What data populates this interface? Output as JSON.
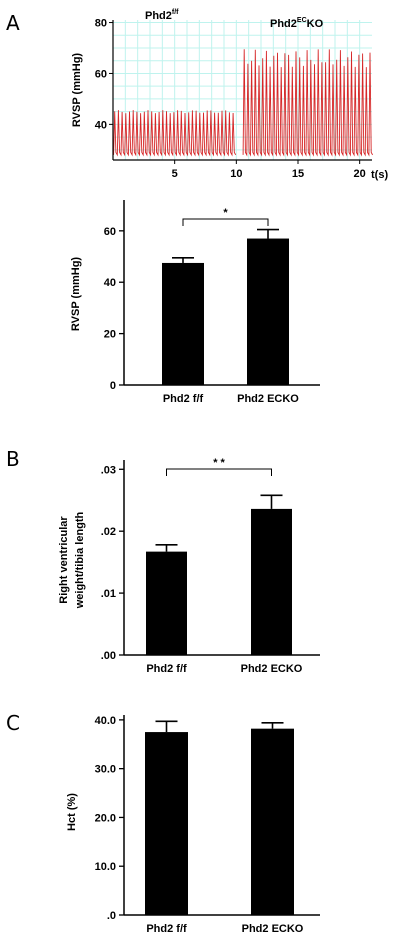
{
  "panel_labels": {
    "a": "A",
    "b": "B",
    "c": "C"
  },
  "colors": {
    "trace": "#d62728",
    "grid": "#bff3ee",
    "bar": "#000000"
  },
  "chart_data": [
    {
      "type": "line",
      "panel": "A",
      "ylabel": "RVSP (mmHg)",
      "x_unit": "t(s)",
      "x_ticks": [
        5,
        10,
        15,
        20
      ],
      "y_ticks": [
        40,
        60,
        80
      ],
      "xlim": [
        0,
        21
      ],
      "ylim": [
        26,
        81
      ],
      "grid": true,
      "annotations": [
        {
          "text": "Phd2",
          "sup": "f/f",
          "series": "Phd2 f/f"
        },
        {
          "text": "Phd2",
          "sup": "EC",
          "tail": "KO",
          "series": "Phd2 ECKO"
        }
      ],
      "series": [
        {
          "name": "Phd2 f/f",
          "t_start": 0.05,
          "t_end": 9.85,
          "period": 0.3,
          "systolic": 45,
          "diastolic": 28
        },
        {
          "name": "Phd2 ECKO",
          "t_start": 10.55,
          "t_end": 20.9,
          "period": 0.3,
          "systolic": 66,
          "diastolic": 28
        }
      ]
    },
    {
      "type": "bar",
      "panel": "A",
      "ylabel": "RVSP (mmHg)",
      "categories": [
        "Phd2 f/f",
        "Phd2 ECKO"
      ],
      "values": [
        47.5,
        57
      ],
      "errors": [
        2,
        3.5
      ],
      "y_ticks": [
        "0",
        "20",
        "40",
        "60"
      ],
      "ylim": [
        0,
        72
      ],
      "significance": "*"
    },
    {
      "type": "bar",
      "panel": "B",
      "ylabel": "Right ventricular weight/tibia length",
      "categories": [
        "Phd2 f/f",
        "Phd2 ECKO"
      ],
      "values": [
        0.0167,
        0.0236
      ],
      "errors": [
        0.0011,
        0.0022
      ],
      "y_ticks": [
        ".00",
        ".01",
        ".02",
        ".03"
      ],
      "ylim": [
        0,
        0.0315
      ],
      "significance": "* *"
    },
    {
      "type": "bar",
      "panel": "C",
      "ylabel": "Hct  (%)",
      "categories": [
        "Phd2 f/f",
        "Phd2 ECKO"
      ],
      "values": [
        37.5,
        38.2
      ],
      "errors": [
        2.2,
        1.2
      ],
      "y_ticks": [
        ".0",
        "10.0",
        "20.0",
        "30.0",
        "40.0"
      ],
      "ylim": [
        0,
        41
      ]
    }
  ]
}
